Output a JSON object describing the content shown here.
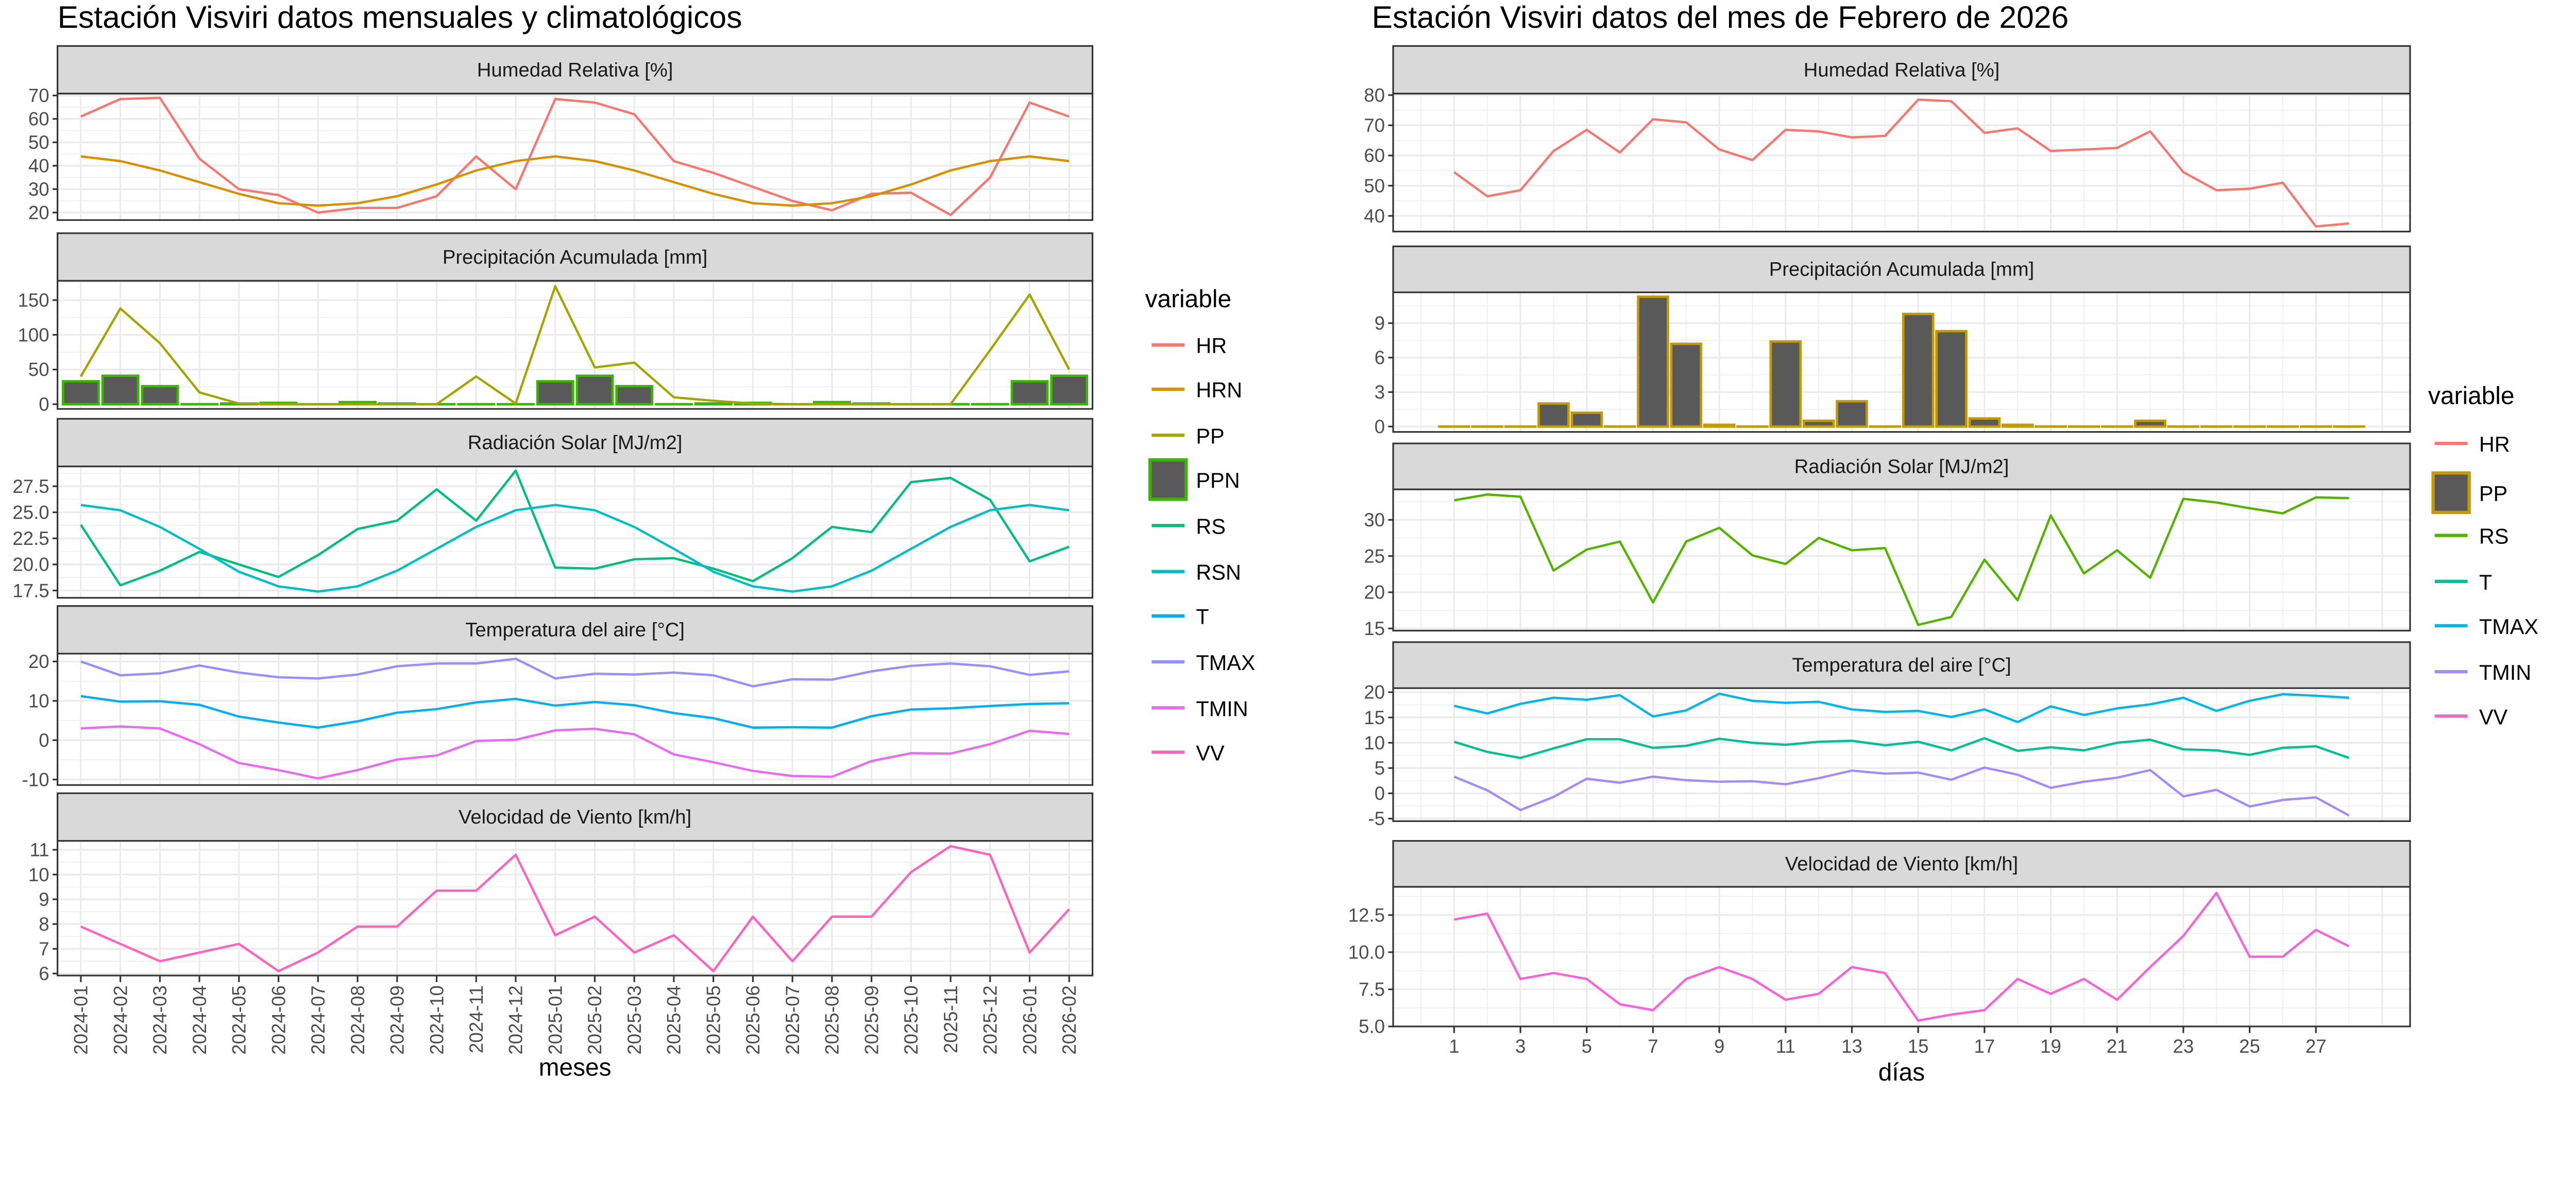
{
  "chart_data": [
    {
      "type": "line",
      "title": "Estación Visviri datos mensuales y climatológicos",
      "xlabel": "meses",
      "x": [
        "2024-01",
        "2024-02",
        "2024-03",
        "2024-04",
        "2024-05",
        "2024-06",
        "2024-07",
        "2024-08",
        "2024-09",
        "2024-10",
        "2024-11",
        "2024-12",
        "2025-01",
        "2025-02",
        "2025-03",
        "2025-04",
        "2025-05",
        "2025-06",
        "2025-07",
        "2025-08",
        "2025-09",
        "2025-10",
        "2025-11",
        "2025-12",
        "2026-01",
        "2026-02"
      ],
      "grid": true,
      "legend": {
        "title": "variable",
        "placement": "right",
        "items": [
          {
            "name": "HR",
            "color": "#F8766D",
            "kind": "line"
          },
          {
            "name": "HRN",
            "color": "#D89000",
            "kind": "line"
          },
          {
            "name": "PP",
            "color": "#A3A500",
            "kind": "line"
          },
          {
            "name": "PPN",
            "color": "#39B600",
            "fill": "#595959",
            "kind": "bar"
          },
          {
            "name": "RS",
            "color": "#00BF7D",
            "kind": "line"
          },
          {
            "name": "RSN",
            "color": "#00BFC4",
            "kind": "line"
          },
          {
            "name": "T",
            "color": "#00B0F6",
            "kind": "line"
          },
          {
            "name": "TMAX",
            "color": "#9590FF",
            "kind": "line"
          },
          {
            "name": "TMIN",
            "color": "#E76BF3",
            "kind": "line"
          },
          {
            "name": "VV",
            "color": "#FF62BC",
            "kind": "line"
          }
        ]
      },
      "panels": [
        {
          "title": "Humedad Relativa [%]",
          "ylim": [
            16.8,
            70.8
          ],
          "yticks": [
            "20",
            "30",
            "40",
            "50",
            "60",
            "70"
          ],
          "series": [
            {
              "name": "HR",
              "values": [
                61,
                68.5,
                69,
                43,
                30,
                27.5,
                20,
                22,
                22,
                27,
                44,
                30,
                68.5,
                67,
                62,
                42,
                37,
                31,
                25,
                21,
                28,
                28.5,
                19,
                35,
                67,
                61
              ]
            },
            {
              "name": "HRN",
              "values": [
                44,
                42,
                38,
                33,
                28,
                24,
                23,
                24,
                27,
                32,
                38,
                42,
                44,
                42,
                38,
                33,
                28,
                24,
                23,
                24,
                27,
                32,
                38,
                42,
                44,
                42
              ]
            }
          ]
        },
        {
          "title": "Precipitación Acumulada [mm]",
          "ylim": [
            -6.8,
            177.8
          ],
          "yticks": [
            "0",
            "50",
            "100",
            "150"
          ],
          "series": [
            {
              "name": "PPN",
              "kind": "bar",
              "values": [
                33,
                41,
                26,
                0,
                1,
                2,
                0,
                3,
                1,
                0,
                0,
                0,
                33,
                41,
                26,
                0,
                1,
                2,
                0,
                3,
                1,
                0,
                0,
                0,
                33,
                41
              ]
            },
            {
              "name": "PP",
              "values": [
                40,
                138,
                88,
                17,
                1,
                0,
                0,
                0,
                0,
                0,
                40,
                1,
                170,
                53,
                60,
                10,
                5,
                1,
                0,
                0,
                0,
                0,
                0,
                78,
                158,
                50
              ]
            }
          ]
        },
        {
          "title": "Radiación Solar [MJ/m2]",
          "ylim": [
            16.8,
            29.4
          ],
          "yticks": [
            "17.5",
            "20.0",
            "22.5",
            "25.0",
            "27.5"
          ],
          "series": [
            {
              "name": "RS",
              "values": [
                23.8,
                18.0,
                19.4,
                21.2,
                20.0,
                18.8,
                20.9,
                23.4,
                24.2,
                27.2,
                24.2,
                29.0,
                19.7,
                19.6,
                20.5,
                20.6,
                19.6,
                18.4,
                20.6,
                23.6,
                23.1,
                27.9,
                28.3,
                26.2,
                20.3,
                21.7
              ]
            },
            {
              "name": "RSN",
              "values": [
                25.7,
                25.2,
                23.6,
                21.5,
                19.3,
                17.9,
                17.4,
                17.9,
                19.4,
                21.5,
                23.6,
                25.2,
                25.7,
                25.2,
                23.6,
                21.5,
                19.3,
                17.9,
                17.4,
                17.9,
                19.4,
                21.5,
                23.6,
                25.2,
                25.7,
                25.2
              ]
            }
          ]
        },
        {
          "title": "Temperatura del aire [°C]",
          "ylim": [
            -11.4,
            22
          ],
          "yticks": [
            "-10",
            "0",
            "10",
            "20"
          ],
          "series": [
            {
              "name": "TMAX",
              "values": [
                20,
                16.5,
                17,
                19,
                17.2,
                16,
                15.7,
                16.7,
                18.8,
                19.5,
                19.5,
                20.7,
                15.7,
                16.9,
                16.7,
                17.2,
                16.5,
                13.7,
                15.5,
                15.4,
                17.5,
                18.9,
                19.5,
                18.8,
                16.6,
                17.5
              ]
            },
            {
              "name": "T",
              "values": [
                11.2,
                9.8,
                9.9,
                9,
                6,
                4.5,
                3.2,
                4.8,
                7,
                7.9,
                9.6,
                10.5,
                8.8,
                9.7,
                8.9,
                6.9,
                5.6,
                3.2,
                3.3,
                3.2,
                6.1,
                7.8,
                8.1,
                8.7,
                9.2,
                9.4
              ]
            },
            {
              "name": "TMIN",
              "values": [
                3,
                3.5,
                3,
                -1,
                -5.8,
                -7.6,
                -9.7,
                -7.6,
                -4.9,
                -3.9,
                -0.2,
                0.1,
                2.5,
                2.9,
                1.5,
                -3.6,
                -5.6,
                -7.8,
                -9.1,
                -9.3,
                -5.3,
                -3.3,
                -3.4,
                -1,
                2.4,
                1.6
              ]
            }
          ]
        },
        {
          "title": "Velocidad de Viento [km/h]",
          "ylim": [
            5.92,
            11.36
          ],
          "yticks": [
            "6",
            "7",
            "8",
            "9",
            "10",
            "11"
          ],
          "series": [
            {
              "name": "VV",
              "values": [
                7.9,
                7.2,
                6.5,
                6.85,
                7.2,
                6.1,
                6.85,
                7.9,
                7.9,
                9.35,
                9.35,
                10.8,
                7.55,
                8.3,
                6.85,
                7.55,
                6.1,
                8.3,
                6.5,
                8.3,
                8.3,
                10.1,
                11.15,
                10.8,
                6.85,
                8.6
              ]
            }
          ]
        }
      ]
    },
    {
      "type": "line",
      "title": "Estación Visviri datos del mes de Febrero de 2026",
      "xlabel": "días",
      "x": [
        1,
        2,
        3,
        4,
        5,
        6,
        7,
        8,
        9,
        10,
        11,
        12,
        13,
        14,
        15,
        16,
        17,
        18,
        19,
        20,
        21,
        22,
        23,
        24,
        25,
        26,
        27,
        28
      ],
      "xticks": [
        "1",
        "3",
        "5",
        "7",
        "9",
        "11",
        "13",
        "15",
        "17",
        "19",
        "21",
        "23",
        "25",
        "27"
      ],
      "grid": true,
      "legend": {
        "title": "variable",
        "placement": "right",
        "items": [
          {
            "name": "HR",
            "color": "#F8766D",
            "kind": "line"
          },
          {
            "name": "PP",
            "color": "#C49A00",
            "fill": "#595959",
            "kind": "bar"
          },
          {
            "name": "RS",
            "color": "#53B400",
            "kind": "line"
          },
          {
            "name": "T",
            "color": "#00C094",
            "kind": "line"
          },
          {
            "name": "TMAX",
            "color": "#00B6EB",
            "kind": "line"
          },
          {
            "name": "TMIN",
            "color": "#A58AFF",
            "kind": "line"
          },
          {
            "name": "VV",
            "color": "#FB61D7",
            "kind": "line"
          }
        ]
      },
      "panels": [
        {
          "title": "Humedad Relativa [%]",
          "ylim": [
            34.8,
            80.5
          ],
          "yticks": [
            "40",
            "50",
            "60",
            "70",
            "80"
          ],
          "series": [
            {
              "name": "HR",
              "values": [
                54.5,
                46.5,
                48.5,
                61.5,
                68.5,
                61,
                72,
                71,
                62,
                58.5,
                68.5,
                68,
                66,
                66.5,
                78.5,
                78,
                67.5,
                69,
                61.5,
                62,
                62.5,
                68,
                54.5,
                48.5,
                49,
                51,
                36.5,
                37.5
              ]
            }
          ]
        },
        {
          "title": "Precipitación Acumulada [mm]",
          "ylim": [
            -0.47,
            11.68
          ],
          "yticks": [
            "0",
            "3",
            "6",
            "9"
          ],
          "series": [
            {
              "name": "PP",
              "kind": "bar",
              "values": [
                0,
                0,
                0,
                2,
                1.2,
                0,
                11.3,
                7.2,
                0.15,
                0,
                7.4,
                0.5,
                2.2,
                0,
                9.8,
                8.3,
                0.7,
                0.15,
                0,
                0,
                0,
                0.5,
                0,
                0,
                0,
                0,
                0,
                0
              ]
            }
          ]
        },
        {
          "title": "Radiación Solar [MJ/m2]",
          "ylim": [
            14.7,
            34.2
          ],
          "yticks": [
            "15",
            "20",
            "25",
            "30"
          ],
          "series": [
            {
              "name": "RS",
              "values": [
                32.7,
                33.5,
                33.2,
                23,
                25.9,
                27,
                18.6,
                27,
                28.9,
                25.1,
                23.9,
                27.5,
                25.8,
                26.1,
                15.5,
                16.6,
                24.5,
                18.9,
                30.6,
                22.6,
                25.8,
                22,
                32.9,
                32.4,
                31.6,
                30.9,
                33.1,
                33
              ]
            }
          ]
        },
        {
          "title": "Temperatura del aire [°C]",
          "ylim": [
            -5.5,
            20.8
          ],
          "yticks": [
            "-5",
            "0",
            "5",
            "10",
            "15",
            "20"
          ],
          "series": [
            {
              "name": "TMAX",
              "values": [
                17.3,
                15.8,
                17.7,
                18.9,
                18.5,
                19.4,
                15.2,
                16.4,
                19.7,
                18.3,
                17.9,
                18.1,
                16.6,
                16.1,
                16.3,
                15.1,
                16.6,
                14.1,
                17.2,
                15.5,
                16.8,
                17.6,
                18.9,
                16.3,
                18.3,
                19.6,
                19.3,
                18.9
              ]
            },
            {
              "name": "T",
              "values": [
                10.2,
                8.2,
                7.0,
                8.9,
                10.7,
                10.7,
                9,
                9.4,
                10.8,
                10,
                9.6,
                10.2,
                10.4,
                9.5,
                10.2,
                8.5,
                10.9,
                8.4,
                9.1,
                8.5,
                10,
                10.6,
                8.7,
                8.5,
                7.6,
                9,
                9.3,
                7.0
              ]
            },
            {
              "name": "TMIN",
              "values": [
                3.3,
                0.6,
                -3.3,
                -0.7,
                2.9,
                2.1,
                3.3,
                2.6,
                2.3,
                2.4,
                1.8,
                3,
                4.5,
                3.9,
                4.1,
                2.7,
                5.1,
                3.7,
                1.1,
                2.3,
                3.1,
                4.6,
                -0.6,
                0.7,
                -2.6,
                -1.3,
                -0.8,
                -4.4
              ]
            }
          ]
        },
        {
          "title": "Velocidad de Viento [km/h]",
          "ylim": [
            5.0,
            14.4
          ],
          "yticks": [
            "5.0",
            "7.5",
            "10.0",
            "12.5"
          ],
          "series": [
            {
              "name": "VV",
              "values": [
                12.2,
                12.6,
                8.2,
                8.6,
                8.2,
                6.5,
                6.1,
                8.2,
                9,
                8.2,
                6.8,
                7.2,
                9,
                8.6,
                5.4,
                5.8,
                6.1,
                8.2,
                7.2,
                8.2,
                6.8,
                9,
                11.1,
                14,
                9.7,
                9.7,
                11.5,
                10.4
              ]
            }
          ]
        }
      ]
    }
  ]
}
